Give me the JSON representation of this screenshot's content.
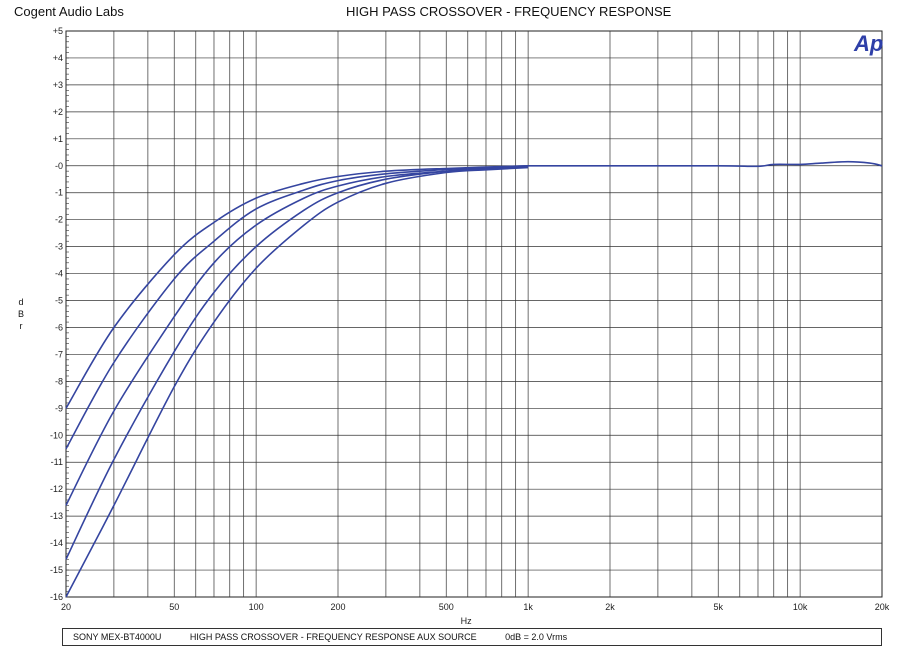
{
  "header": {
    "company": "Cogent Audio Labs",
    "title": "HIGH PASS CROSSOVER   -  FREQUENCY RESPONSE"
  },
  "logo": {
    "text": "Ap",
    "color": "#2E3FA8"
  },
  "footer": {
    "device": "SONY MEX-BT4000U",
    "description": "HIGH PASS CROSSOVER  -  FREQUENCY RESPONSE    AUX SOURCE",
    "reference": "0dB = 2.0 Vrms"
  },
  "chart_data": {
    "type": "line",
    "title": "HIGH PASS CROSSOVER   -  FREQUENCY RESPONSE",
    "xlabel": "Hz",
    "ylabel": "dBr",
    "x_scale": "log",
    "xlim": [
      20,
      20000
    ],
    "ylim": [
      -16,
      5
    ],
    "grid": true,
    "line_color": "#3545A0",
    "x_ticks": [
      "20",
      "50",
      "100",
      "200",
      "500",
      "1k",
      "2k",
      "5k",
      "10k",
      "20k"
    ],
    "y_ticks": [
      "+5",
      "+4",
      "+3",
      "+2",
      "+1",
      "-0",
      "-1",
      "-2",
      "-3",
      "-4",
      "-5",
      "-6",
      "-7",
      "-8",
      "-9",
      "-10",
      "-11",
      "-12",
      "-13",
      "-14",
      "-15",
      "-16"
    ],
    "x": [
      20,
      30,
      50,
      70,
      100,
      150,
      200,
      300,
      500,
      700,
      1000
    ],
    "series": [
      {
        "values": [
          -9.0,
          -6.0,
          -3.3,
          -2.1,
          -1.2,
          -0.65,
          -0.4,
          -0.2,
          -0.1,
          -0.05,
          0.0
        ]
      },
      {
        "values": [
          -10.5,
          -7.3,
          -4.2,
          -2.8,
          -1.6,
          -0.9,
          -0.55,
          -0.3,
          -0.14,
          -0.07,
          0.0
        ]
      },
      {
        "values": [
          -12.6,
          -9.1,
          -5.6,
          -3.6,
          -2.2,
          -1.2,
          -0.75,
          -0.4,
          -0.2,
          -0.1,
          -0.03
        ]
      },
      {
        "values": [
          -14.6,
          -10.9,
          -6.9,
          -4.7,
          -3.0,
          -1.65,
          -1.0,
          -0.5,
          -0.2,
          -0.12,
          -0.05
        ]
      },
      {
        "values": [
          -16.0,
          -12.6,
          -8.2,
          -5.8,
          -3.8,
          -2.2,
          -1.35,
          -0.65,
          -0.25,
          -0.15,
          -0.07
        ]
      }
    ],
    "common_tail": {
      "x": [
        1000,
        2000,
        5000,
        7000,
        8000,
        10000,
        12000,
        15000,
        18000,
        20000
      ],
      "values": [
        0.0,
        0.0,
        0.0,
        -0.02,
        0.05,
        0.05,
        0.1,
        0.15,
        0.1,
        0.0
      ]
    }
  }
}
